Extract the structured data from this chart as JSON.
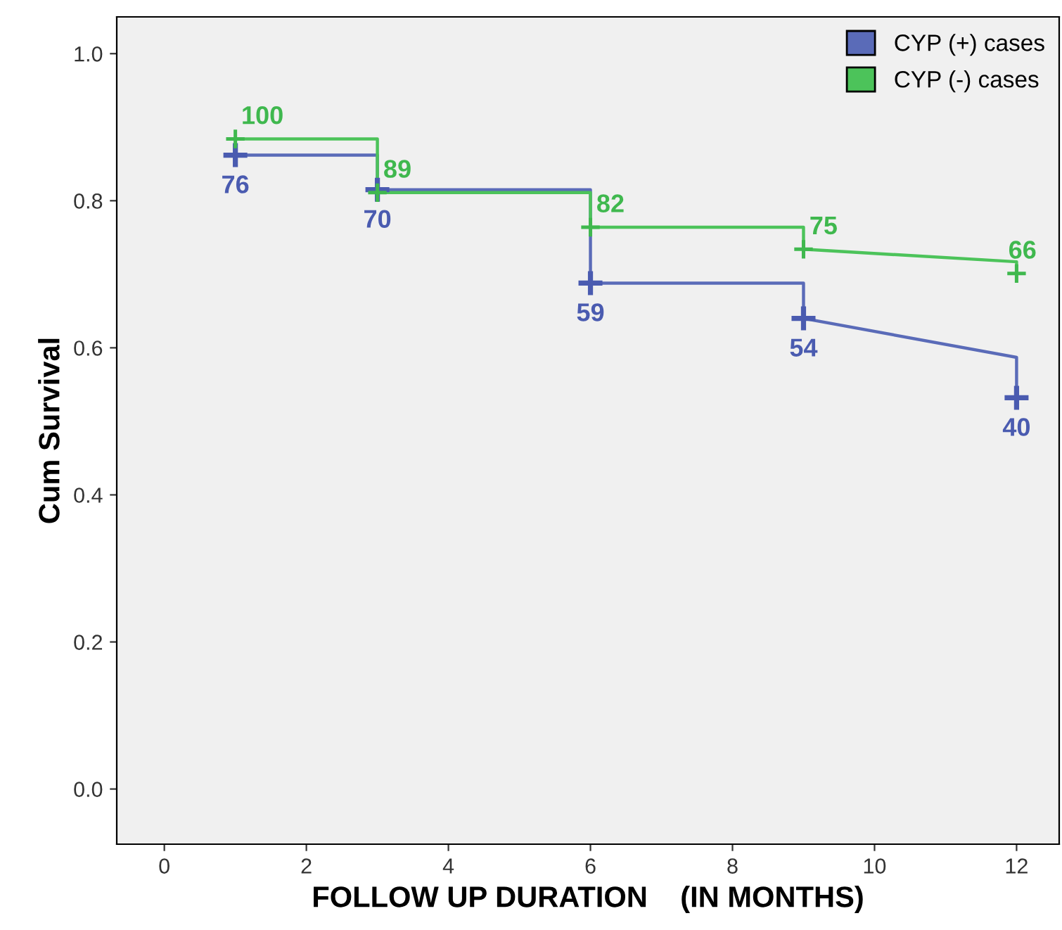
{
  "chart_data": {
    "type": "line",
    "xlabel": "FOLLOW UP DURATION    (IN MONTHS)",
    "ylabel": "Cum Survival",
    "xlim": [
      -0.67,
      12.6
    ],
    "ylim": [
      -0.075,
      1.05
    ],
    "xticks": [
      0,
      2,
      4,
      6,
      8,
      10,
      12
    ],
    "yticks": [
      {
        "value": 0,
        "label": "0.0"
      },
      {
        "value": 0.2,
        "label": "0.2"
      },
      {
        "value": 0.4,
        "label": "0.4"
      },
      {
        "value": 0.6,
        "label": "0.6"
      },
      {
        "value": 0.8,
        "label": "0.8"
      },
      {
        "value": 1,
        "label": "1.0"
      }
    ],
    "grid": false,
    "legend": "top right",
    "marker": "none",
    "line_style": "solid",
    "series": [
      {
        "name": "CYP (+) cases",
        "color": "#5a6bb8",
        "x": [
          1,
          3,
          3,
          6,
          6,
          9,
          9,
          12,
          12
        ],
        "values": [
          0.862,
          0.862,
          0.815,
          0.815,
          0.688,
          0.688,
          0.64,
          0.587,
          0.532
        ]
      },
      {
        "name": "CYP (-) cases",
        "color": "#4cc35a",
        "x": [
          1,
          3,
          3,
          6,
          6,
          9,
          9,
          12,
          12
        ],
        "values": [
          0.884,
          0.884,
          0.811,
          0.811,
          0.764,
          0.764,
          0.734,
          0.717,
          0.701
        ]
      },
      {
        "type": "scatter",
        "marker": "cross",
        "color": "#4a5bb0",
        "x": [
          1,
          3,
          6,
          9,
          12
        ],
        "values": [
          0.862,
          0.815,
          0.688,
          0.64,
          0.532
        ]
      },
      {
        "type": "scatter",
        "marker": "cross",
        "color": "#3fb84e",
        "x": [
          1,
          3,
          6,
          9,
          12
        ],
        "values": [
          0.884,
          0.811,
          0.764,
          0.734,
          0.701
        ]
      }
    ],
    "annotations": [
      {
        "text": "76",
        "x": 1,
        "y": 0.862
      },
      {
        "text": "70",
        "x": 3,
        "y": 0.815
      },
      {
        "text": "59",
        "x": 6,
        "y": 0.688
      },
      {
        "text": "54",
        "x": 9,
        "y": 0.64
      },
      {
        "text": "40",
        "x": 12,
        "y": 0.532
      },
      {
        "text": "100",
        "x": 1,
        "y": 0.884
      },
      {
        "text": "89",
        "x": 3,
        "y": 0.811
      },
      {
        "text": "82",
        "x": 6,
        "y": 0.764
      },
      {
        "text": "75",
        "x": 9,
        "y": 0.734
      },
      {
        "text": "66",
        "x": 12,
        "y": 0.701
      }
    ]
  }
}
